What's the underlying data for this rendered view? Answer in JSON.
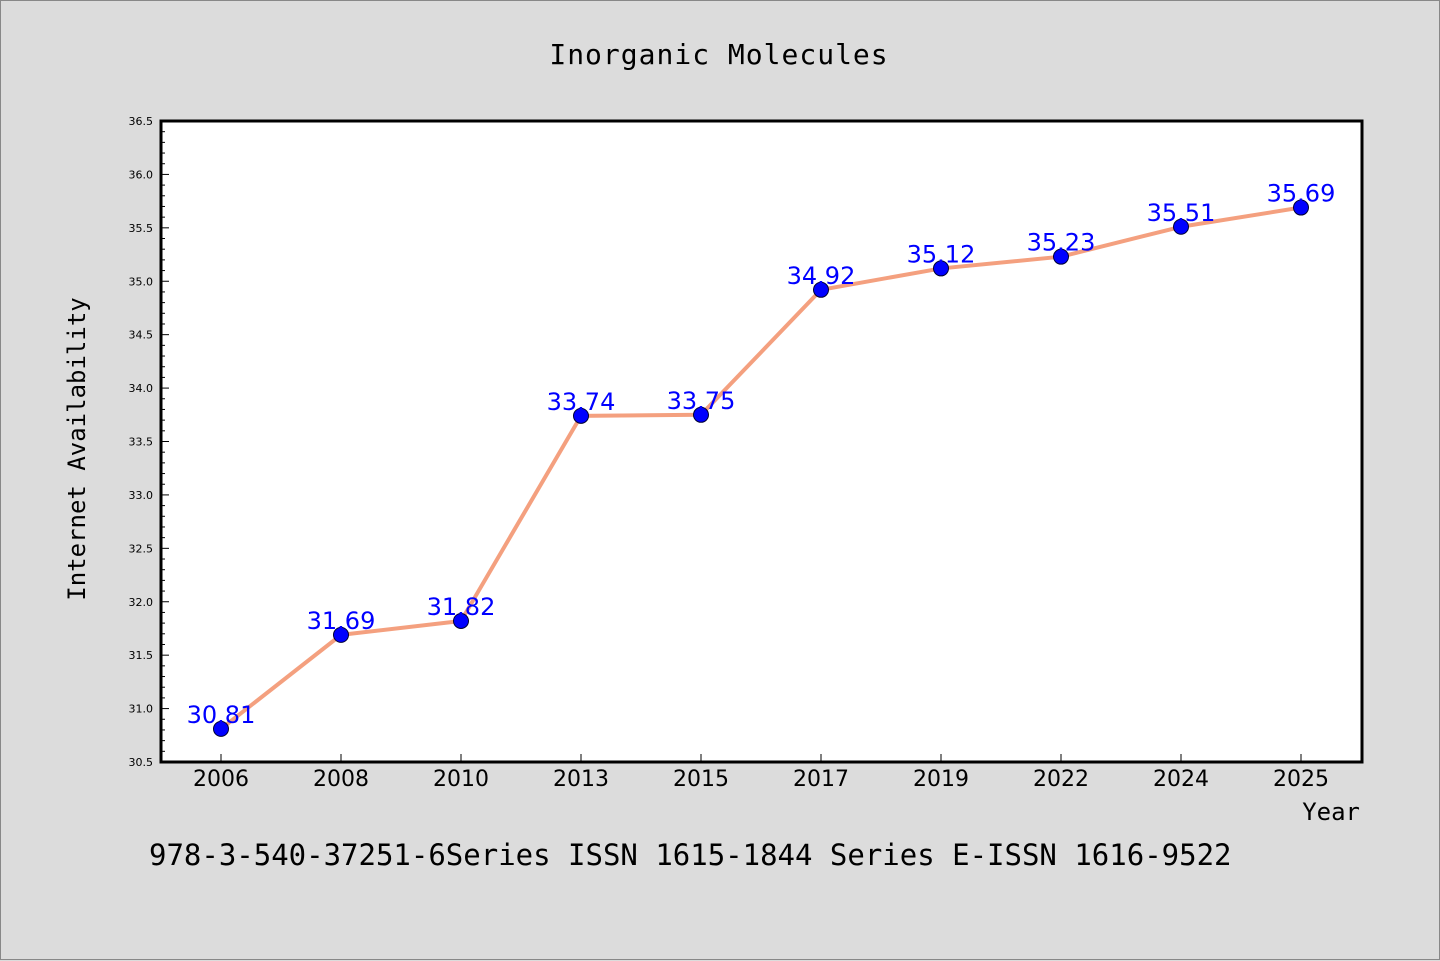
{
  "chart_data": {
    "type": "line",
    "title": "Inorganic Molecules",
    "xlabel": "Year",
    "ylabel": "Internet Availability",
    "categories": [
      "2006",
      "2008",
      "2010",
      "2013",
      "2015",
      "2017",
      "2019",
      "2022",
      "2024",
      "2025"
    ],
    "series": [
      {
        "values": [
          30.81,
          31.69,
          31.82,
          33.74,
          33.75,
          34.92,
          35.12,
          35.23,
          35.51,
          35.69
        ],
        "line_color": "#f4a07f",
        "marker_color": "#0000ff",
        "label_color": "#0000ff"
      }
    ],
    "ylim": [
      30.5,
      36.5
    ],
    "yticks": [
      "30.5",
      "31.0",
      "31.5",
      "32.0",
      "32.5",
      "33.0",
      "33.5",
      "34.0",
      "34.5",
      "35.0",
      "35.5",
      "36.0",
      "36.5"
    ],
    "data_labels": [
      "30.81",
      "31.69",
      "31.82",
      "33.74",
      "33.75",
      "34.92",
      "35.12",
      "35.23",
      "35.51",
      "35.69"
    ],
    "grid": false,
    "legend": "none"
  },
  "footer": {
    "text": "978-3-540-37251-6Series ISSN 1615-1844 Series E-ISSN 1616-9522"
  }
}
